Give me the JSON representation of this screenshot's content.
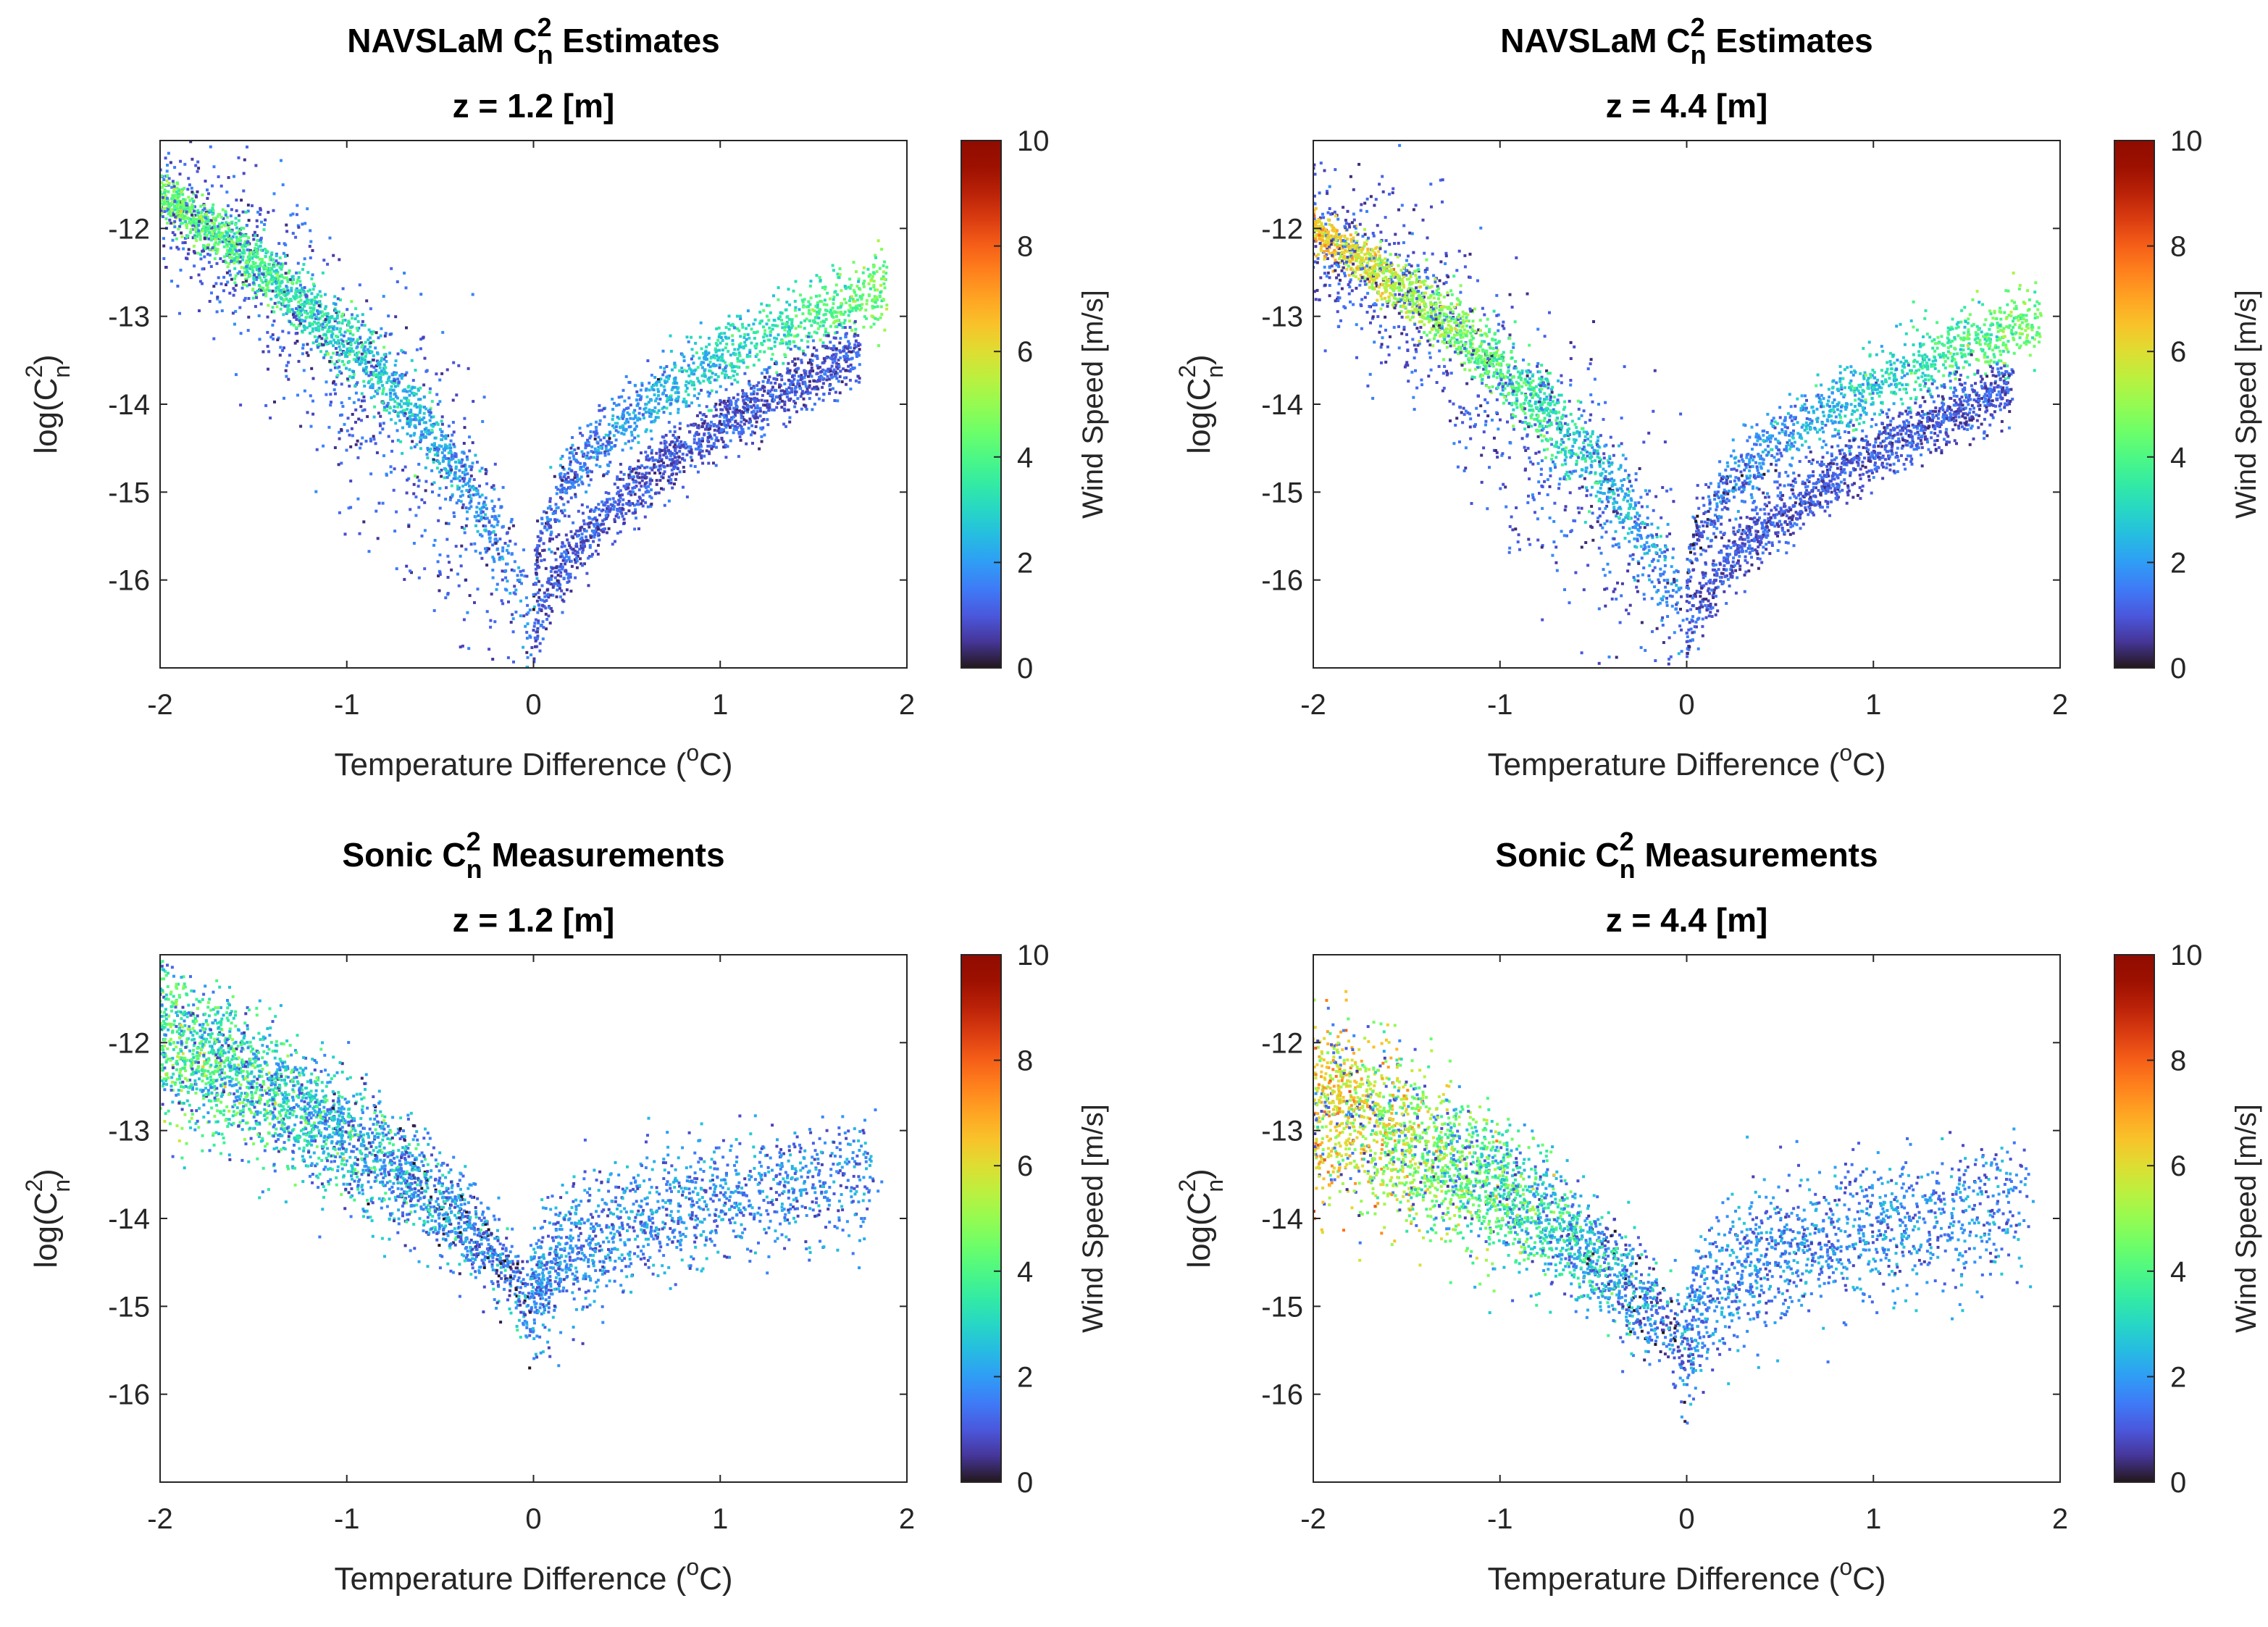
{
  "chart_data": [
    {
      "type": "scatter",
      "id": "nav12",
      "title_main": "NAVSLaM C",
      "title_sup": "2",
      "title_sub": "n",
      "title_rest": " Estimates",
      "subtitle": "z = 1.2 [m]",
      "xlabel": "Temperature Difference (",
      "xlabel_sup": "o",
      "xlabel_end": "C)",
      "ylabel_pre": "log(C",
      "ylabel_sup": "2",
      "ylabel_sub": "n",
      "ylabel_end": ")",
      "xlim": [
        -2,
        2
      ],
      "ylim": [
        -17,
        -11
      ],
      "xticks": [
        "-2",
        "-1",
        "0",
        "1",
        "2"
      ],
      "yticks": [
        "-12",
        "-13",
        "-14",
        "-15",
        "-16"
      ],
      "colorbar": {
        "label": "Wind Speed [m/s]",
        "range": [
          0,
          10
        ],
        "ticks": [
          "0",
          "2",
          "4",
          "6",
          "8",
          "10"
        ]
      },
      "model": {
        "kind": "navslam",
        "neg_top": -11.6,
        "pos_top": -13.3,
        "neg_wind_max": 4.5
      },
      "seed": 11
    },
    {
      "type": "scatter",
      "id": "nav44",
      "title_main": "NAVSLaM C",
      "title_sup": "2",
      "title_sub": "n",
      "title_rest": " Estimates",
      "subtitle": "z = 4.4 [m]",
      "xlabel": "Temperature Difference (",
      "xlabel_sup": "o",
      "xlabel_end": "C)",
      "ylabel_pre": "log(C",
      "ylabel_sup": "2",
      "ylabel_sub": "n",
      "ylabel_end": ")",
      "xlim": [
        -2,
        2
      ],
      "ylim": [
        -17,
        -11
      ],
      "xticks": [
        "-2",
        "-1",
        "0",
        "1",
        "2"
      ],
      "yticks": [
        "-12",
        "-13",
        "-14",
        "-15",
        "-16"
      ],
      "colorbar": {
        "label": "Wind Speed [m/s]",
        "range": [
          0,
          10
        ],
        "ticks": [
          "0",
          "2",
          "4",
          "6",
          "8",
          "10"
        ]
      },
      "model": {
        "kind": "navslam",
        "neg_top": -12.0,
        "pos_top": -13.7,
        "neg_wind_max": 6.5
      },
      "seed": 23
    },
    {
      "type": "scatter",
      "id": "son12",
      "title_main": "Sonic C",
      "title_sup": "2",
      "title_sub": "n",
      "title_rest": " Measurements",
      "subtitle": "z = 1.2 [m]",
      "xlabel": "Temperature Difference (",
      "xlabel_sup": "o",
      "xlabel_end": "C)",
      "ylabel_pre": "log(C",
      "ylabel_sup": "2",
      "ylabel_sub": "n",
      "ylabel_end": ")",
      "xlim": [
        -2,
        2
      ],
      "ylim": [
        -17,
        -11
      ],
      "xticks": [
        "-2",
        "-1",
        "0",
        "1",
        "2"
      ],
      "yticks": [
        "-12",
        "-13",
        "-14",
        "-15",
        "-16"
      ],
      "colorbar": {
        "label": "Wind Speed [m/s]",
        "range": [
          0,
          10
        ],
        "ticks": [
          "0",
          "2",
          "4",
          "6",
          "8",
          "10"
        ]
      },
      "model": {
        "kind": "sonic",
        "neg_top": -11.9,
        "bottom": -15.3,
        "pos_level": -13.5,
        "neg_wind_max": 4.0,
        "spread": 0.38
      },
      "seed": 37
    },
    {
      "type": "scatter",
      "id": "son44",
      "title_main": "Sonic C",
      "title_sup": "2",
      "title_sub": "n",
      "title_rest": " Measurements",
      "subtitle": "z = 4.4 [m]",
      "xlabel": "Temperature Difference (",
      "xlabel_sup": "o",
      "xlabel_end": "C)",
      "ylabel_pre": "log(C",
      "ylabel_sup": "2",
      "ylabel_sub": "n",
      "ylabel_end": ")",
      "xlim": [
        -2,
        2
      ],
      "ylim": [
        -17,
        -11
      ],
      "xticks": [
        "-2",
        "-1",
        "0",
        "1",
        "2"
      ],
      "yticks": [
        "-12",
        "-13",
        "-14",
        "-15",
        "-16"
      ],
      "colorbar": {
        "label": "Wind Speed [m/s]",
        "range": [
          0,
          10
        ],
        "ticks": [
          "0",
          "2",
          "4",
          "6",
          "8",
          "10"
        ]
      },
      "model": {
        "kind": "sonic",
        "neg_top": -12.6,
        "bottom": -15.8,
        "pos_level": -13.8,
        "neg_wind_max": 6.5,
        "spread": 0.45
      },
      "seed": 53
    }
  ]
}
